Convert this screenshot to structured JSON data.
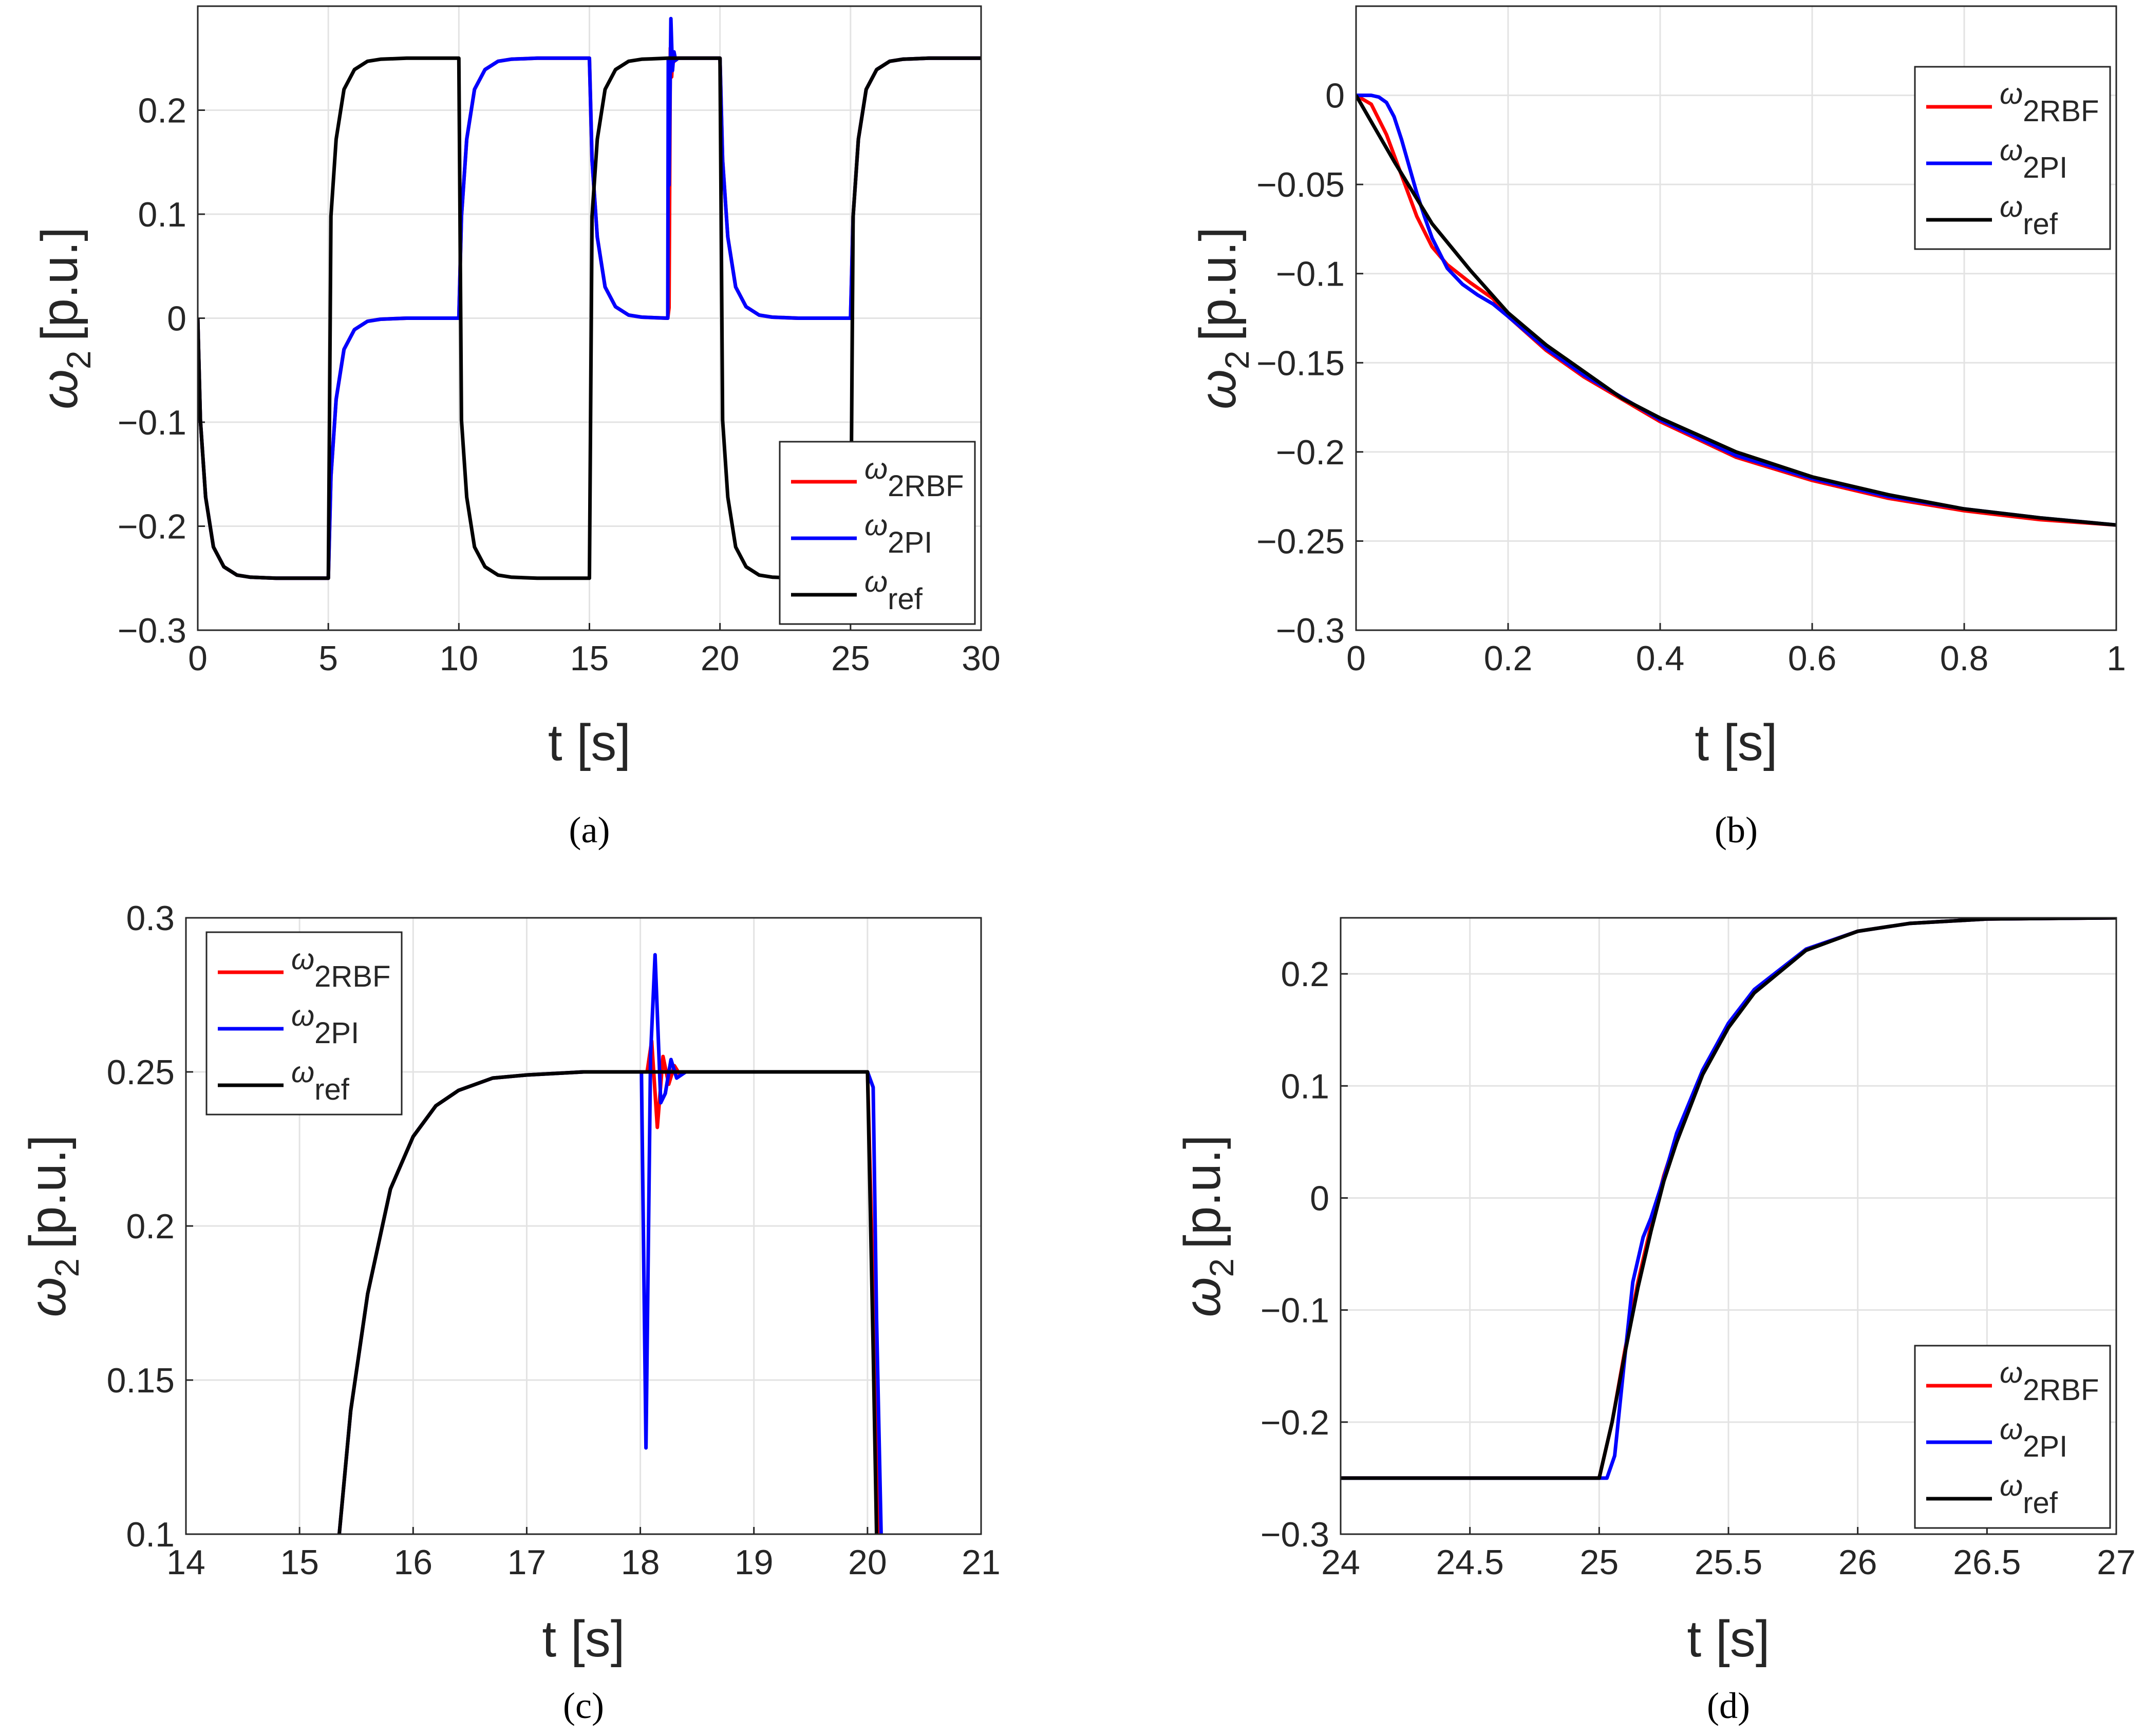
{
  "colors": {
    "rbf": "#ff0000",
    "pi": "#0000ff",
    "ref": "#000000",
    "grid": "#e3e3e3",
    "axis": "#262626"
  },
  "legend_entries": [
    {
      "key": "rbf",
      "sym": "ω",
      "sub": "2RBF",
      "color": "#ff0000"
    },
    {
      "key": "pi",
      "sym": "ω",
      "sub": "2PI",
      "color": "#0000ff"
    },
    {
      "key": "ref",
      "sym": "ω",
      "sub": "ref",
      "color": "#000000"
    }
  ],
  "chart_data": [
    {
      "id": "a",
      "panel_label": "(a)",
      "type": "line",
      "xlabel": "t [s]",
      "ylabel_sym": "ω",
      "ylabel_sub": "2",
      "ylabel_unit": "[p.u.]",
      "xlim": [
        0,
        30
      ],
      "ylim": [
        -0.3,
        0.3
      ],
      "xticks": [
        "0",
        "5",
        "10",
        "15",
        "20",
        "25",
        "30"
      ],
      "yticks": [
        "−0.3",
        "−0.2",
        "−0.1",
        "0",
        "0.1",
        "0.2"
      ],
      "legend_position": "bottom-right",
      "series": [
        {
          "name": "ω2RBF",
          "key": "rbf",
          "x": [
            0,
            0.1,
            0.3,
            0.6,
            1,
            1.5,
            2,
            3,
            5,
            5.1,
            5.3,
            5.6,
            6,
            6.5,
            7,
            8,
            10,
            10.1,
            10.3,
            10.6,
            11,
            11.5,
            12,
            13,
            15,
            15.1,
            15.3,
            15.6,
            16,
            16.5,
            17,
            18,
            18.05,
            18.1,
            18.15,
            18.2,
            18.25,
            18.3,
            18.4,
            20,
            20.1,
            20.3,
            20.6,
            21,
            21.5,
            22,
            23,
            25,
            25.1,
            25.3,
            25.6,
            26,
            26.5,
            27,
            28,
            30
          ],
          "y": [
            0,
            -0.098,
            -0.172,
            -0.22,
            -0.239,
            -0.247,
            -0.249,
            -0.25,
            -0.25,
            -0.152,
            -0.078,
            -0.03,
            -0.011,
            -0.003,
            -0.001,
            0,
            0,
            0.098,
            0.172,
            0.22,
            0.239,
            0.247,
            0.249,
            0.25,
            0.25,
            0.152,
            0.078,
            0.03,
            0.011,
            0.003,
            0.001,
            0,
            0.01,
            0.26,
            0.232,
            0.255,
            0.247,
            0.25,
            0.25,
            0.25,
            0.152,
            0.078,
            0.03,
            0.011,
            0.003,
            0.001,
            0,
            0,
            0.098,
            0.172,
            0.22,
            0.239,
            0.247,
            0.249,
            0.25,
            0.25
          ]
        },
        {
          "name": "ω2PI",
          "key": "pi",
          "x": [
            0,
            0.1,
            0.3,
            0.6,
            1,
            1.5,
            2,
            3,
            5,
            5.1,
            5.3,
            5.6,
            6,
            6.5,
            7,
            8,
            10,
            10.1,
            10.3,
            10.6,
            11,
            11.5,
            12,
            13,
            15,
            15.1,
            15.3,
            15.6,
            16,
            16.5,
            17,
            18,
            18.02,
            18.05,
            18.12,
            18.18,
            18.24,
            18.3,
            18.4,
            20,
            20.1,
            20.3,
            20.6,
            21,
            21.5,
            22,
            23,
            25,
            25.1,
            25.3,
            25.6,
            26,
            26.5,
            27,
            28,
            30
          ],
          "y": [
            0,
            -0.098,
            -0.172,
            -0.22,
            -0.239,
            -0.247,
            -0.249,
            -0.25,
            -0.25,
            -0.152,
            -0.078,
            -0.03,
            -0.011,
            -0.003,
            -0.001,
            0,
            0,
            0.098,
            0.172,
            0.22,
            0.239,
            0.247,
            0.249,
            0.25,
            0.25,
            0.152,
            0.078,
            0.03,
            0.011,
            0.003,
            0.001,
            0,
            0.25,
            0.128,
            0.288,
            0.238,
            0.256,
            0.248,
            0.25,
            0.25,
            0.152,
            0.078,
            0.03,
            0.011,
            0.003,
            0.001,
            0,
            0,
            0.098,
            0.172,
            0.22,
            0.239,
            0.247,
            0.249,
            0.25,
            0.25
          ]
        },
        {
          "name": "ωref",
          "key": "ref",
          "x": [
            0,
            0.1,
            0.3,
            0.6,
            1,
            1.5,
            2,
            3,
            5,
            5.1,
            5.3,
            5.6,
            6,
            6.5,
            7,
            8,
            10,
            10.1,
            10.3,
            10.6,
            11,
            11.5,
            12,
            13,
            15,
            15.1,
            15.3,
            15.6,
            16,
            16.5,
            17,
            18,
            20,
            20.1,
            20.3,
            20.6,
            21,
            21.5,
            22,
            23,
            25,
            25.1,
            25.3,
            25.6,
            26,
            26.5,
            27,
            28,
            30
          ],
          "y": [
            0,
            -0.098,
            -0.172,
            -0.22,
            -0.239,
            -0.247,
            -0.249,
            -0.25,
            -0.25,
            0.098,
            0.172,
            0.22,
            0.239,
            0.247,
            0.249,
            0.25,
            0.25,
            -0.098,
            -0.172,
            -0.22,
            -0.239,
            -0.247,
            -0.249,
            -0.25,
            -0.25,
            0.098,
            0.172,
            0.22,
            0.239,
            0.247,
            0.249,
            0.25,
            0.25,
            -0.098,
            -0.172,
            -0.22,
            -0.239,
            -0.247,
            -0.249,
            -0.25,
            -0.25,
            0.098,
            0.172,
            0.22,
            0.239,
            0.247,
            0.249,
            0.25,
            0.25
          ]
        }
      ]
    },
    {
      "id": "b",
      "panel_label": "(b)",
      "type": "line",
      "xlabel": "t [s]",
      "ylabel_sym": "ω",
      "ylabel_sub": "2",
      "ylabel_unit": "[p.u.]",
      "xlim": [
        0,
        1
      ],
      "ylim": [
        -0.3,
        0.05
      ],
      "xticks": [
        "0",
        "0.2",
        "0.4",
        "0.6",
        "0.8",
        "1"
      ],
      "yticks": [
        "−0.3",
        "−0.25",
        "−0.2",
        "−0.15",
        "−0.1",
        "−0.05",
        "0"
      ],
      "legend_position": "top-right",
      "series": [
        {
          "name": "ω2RBF",
          "key": "rbf",
          "x": [
            0,
            0.02,
            0.04,
            0.06,
            0.08,
            0.1,
            0.12,
            0.15,
            0.18,
            0.2,
            0.25,
            0.3,
            0.4,
            0.5,
            0.6,
            0.7,
            0.8,
            0.9,
            1
          ],
          "y": [
            0,
            -0.005,
            -0.022,
            -0.045,
            -0.068,
            -0.085,
            -0.095,
            -0.105,
            -0.114,
            -0.124,
            -0.143,
            -0.158,
            -0.183,
            -0.203,
            -0.216,
            -0.226,
            -0.233,
            -0.238,
            -0.241
          ]
        },
        {
          "name": "ω2PI",
          "key": "pi",
          "x": [
            0,
            0.02,
            0.03,
            0.04,
            0.05,
            0.06,
            0.07,
            0.08,
            0.09,
            0.1,
            0.12,
            0.14,
            0.16,
            0.18,
            0.2,
            0.25,
            0.3,
            0.4,
            0.5,
            0.6,
            0.7,
            0.8,
            0.9,
            1
          ],
          "y": [
            0,
            0,
            -0.001,
            -0.004,
            -0.012,
            -0.025,
            -0.04,
            -0.055,
            -0.068,
            -0.08,
            -0.097,
            -0.106,
            -0.112,
            -0.117,
            -0.124,
            -0.142,
            -0.157,
            -0.182,
            -0.202,
            -0.215,
            -0.225,
            -0.232,
            -0.237,
            -0.241
          ]
        },
        {
          "name": "ωref",
          "key": "ref",
          "x": [
            0,
            0.05,
            0.1,
            0.15,
            0.2,
            0.25,
            0.3,
            0.35,
            0.4,
            0.5,
            0.6,
            0.7,
            0.8,
            0.9,
            1
          ],
          "y": [
            0,
            -0.037,
            -0.072,
            -0.098,
            -0.122,
            -0.14,
            -0.155,
            -0.17,
            -0.181,
            -0.2,
            -0.214,
            -0.224,
            -0.232,
            -0.237,
            -0.241
          ]
        }
      ]
    },
    {
      "id": "c",
      "panel_label": "(c)",
      "type": "line",
      "xlabel": "t [s]",
      "ylabel_sym": "ω",
      "ylabel_sub": "2",
      "ylabel_unit": "[p.u.]",
      "xlim": [
        14,
        21
      ],
      "ylim": [
        0.1,
        0.3
      ],
      "xticks": [
        "14",
        "15",
        "16",
        "17",
        "18",
        "19",
        "20",
        "21"
      ],
      "yticks": [
        "0.1",
        "0.15",
        "0.2",
        "0.25",
        "0.3"
      ],
      "legend_position": "top-left",
      "series": [
        {
          "name": "ω2RBF",
          "key": "rbf",
          "x": [
            15.35,
            15.45,
            15.6,
            15.8,
            16,
            16.2,
            16.4,
            16.7,
            17,
            17.5,
            18,
            18.06,
            18.1,
            18.15,
            18.2,
            18.25,
            18.3,
            18.35,
            18.4,
            18.5,
            20,
            20.05,
            20.1
          ],
          "y": [
            0.1,
            0.14,
            0.178,
            0.212,
            0.229,
            0.239,
            0.244,
            0.248,
            0.249,
            0.25,
            0.25,
            0.25,
            0.26,
            0.232,
            0.255,
            0.246,
            0.252,
            0.249,
            0.25,
            0.25,
            0.25,
            0.18,
            0.1
          ]
        },
        {
          "name": "ω2PI",
          "key": "pi",
          "x": [
            15.35,
            15.45,
            15.6,
            15.8,
            16,
            16.2,
            16.4,
            16.7,
            17,
            17.5,
            18,
            18.01,
            18.05,
            18.09,
            18.13,
            18.18,
            18.22,
            18.27,
            18.32,
            18.4,
            18.5,
            20,
            20.05,
            20.08,
            20.12
          ],
          "y": [
            0.1,
            0.14,
            0.178,
            0.212,
            0.229,
            0.239,
            0.244,
            0.248,
            0.249,
            0.25,
            0.25,
            0.25,
            0.128,
            0.255,
            0.288,
            0.24,
            0.243,
            0.254,
            0.248,
            0.25,
            0.25,
            0.25,
            0.245,
            0.17,
            0.1
          ]
        },
        {
          "name": "ωref",
          "key": "ref",
          "x": [
            15.35,
            15.45,
            15.6,
            15.8,
            16,
            16.2,
            16.4,
            16.7,
            17,
            17.5,
            18,
            20,
            20.05,
            20.08
          ],
          "y": [
            0.1,
            0.14,
            0.178,
            0.212,
            0.229,
            0.239,
            0.244,
            0.248,
            0.249,
            0.25,
            0.25,
            0.25,
            0.16,
            0.1
          ]
        }
      ]
    },
    {
      "id": "d",
      "panel_label": "(d)",
      "type": "line",
      "xlabel": "t [s]",
      "ylabel_sym": "ω",
      "ylabel_sub": "2",
      "ylabel_unit": "[p.u.]",
      "xlim": [
        24,
        27
      ],
      "ylim": [
        -0.3,
        0.25
      ],
      "xticks": [
        "24",
        "24.5",
        "25",
        "25.5",
        "26",
        "26.5",
        "27"
      ],
      "yticks": [
        "−0.3",
        "−0.2",
        "−0.1",
        "0",
        "0.1",
        "0.2"
      ],
      "legend_position": "bottom-right",
      "series": [
        {
          "name": "ω2RBF",
          "key": "rbf",
          "x": [
            24,
            25,
            25.05,
            25.1,
            25.15,
            25.2,
            25.25,
            25.3,
            25.4,
            25.5,
            25.6,
            25.8,
            26,
            26.2,
            26.5,
            27
          ],
          "y": [
            -0.25,
            -0.25,
            -0.2,
            -0.135,
            -0.075,
            -0.025,
            0.02,
            0.055,
            0.112,
            0.155,
            0.185,
            0.222,
            0.238,
            0.245,
            0.249,
            0.25
          ]
        },
        {
          "name": "ω2PI",
          "key": "pi",
          "x": [
            24,
            25,
            25.03,
            25.06,
            25.1,
            25.13,
            25.17,
            25.2,
            25.25,
            25.3,
            25.4,
            25.5,
            25.6,
            25.8,
            26,
            26.2,
            26.5,
            27
          ],
          "y": [
            -0.25,
            -0.25,
            -0.25,
            -0.23,
            -0.14,
            -0.075,
            -0.035,
            -0.018,
            0.018,
            0.058,
            0.114,
            0.156,
            0.186,
            0.222,
            0.238,
            0.245,
            0.249,
            0.25
          ]
        },
        {
          "name": "ωref",
          "key": "ref",
          "x": [
            24,
            25,
            25.05,
            25.1,
            25.15,
            25.2,
            25.25,
            25.3,
            25.4,
            25.5,
            25.6,
            25.8,
            26,
            26.2,
            26.5,
            27
          ],
          "y": [
            -0.25,
            -0.25,
            -0.2,
            -0.138,
            -0.08,
            -0.03,
            0.015,
            0.05,
            0.11,
            0.152,
            0.183,
            0.221,
            0.238,
            0.245,
            0.249,
            0.25
          ]
        }
      ]
    }
  ]
}
